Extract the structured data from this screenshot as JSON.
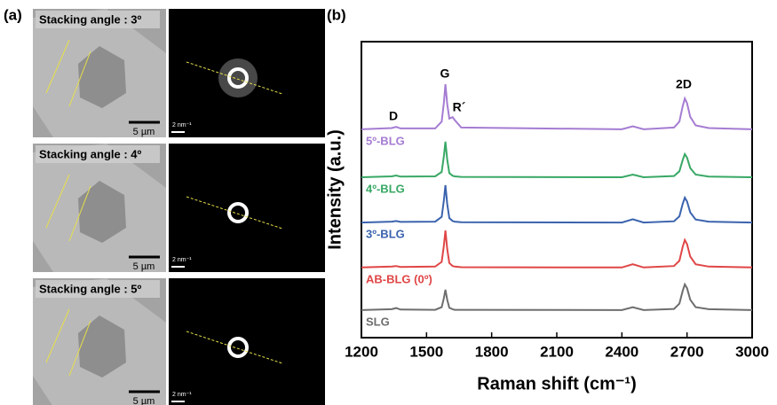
{
  "panel_a": {
    "label": "(a)",
    "rows": [
      {
        "title": "Stacking angle : 3º",
        "scale_bar": "5 µm",
        "diffraction_scale": "2 nm⁻¹"
      },
      {
        "title": "Stacking angle : 4º",
        "scale_bar": "5 µm",
        "diffraction_scale": "2 nm⁻¹"
      },
      {
        "title": "Stacking angle : 5º",
        "scale_bar": "5 µm",
        "diffraction_scale": "2 nm⁻¹"
      }
    ]
  },
  "chart_data": {
    "type": "line",
    "panel_label": "(b)",
    "x_label": "Raman shift (cm⁻¹)",
    "y_label": "Intensity (a.u.)",
    "annotations": [
      "G",
      "R´",
      "D",
      "2D"
    ],
    "x": [
      1200,
      1340,
      1360,
      1380,
      1540,
      1570,
      1580,
      1587,
      1595,
      1605,
      1620,
      1630,
      1660,
      2400,
      2450,
      2500,
      2640,
      2665,
      2680,
      2690,
      2700,
      2715,
      2740,
      2800,
      3000
    ],
    "series": [
      {
        "name": "5º-BLG",
        "color": "#a57cd2",
        "values": [
          70.4,
          70.8,
          71.2,
          70.7,
          70.7,
          73.0,
          79.5,
          85.6,
          79.0,
          74.0,
          74.5,
          73.5,
          71.0,
          70.4,
          71.4,
          70.4,
          71.0,
          73.0,
          78.2,
          80.8,
          79.2,
          74.6,
          71.7,
          70.8,
          70.4
        ]
      },
      {
        "name": "4º-BLG",
        "color": "#38a865",
        "values": [
          54.2,
          54.5,
          54.8,
          54.4,
          54.5,
          56.0,
          61.4,
          66.2,
          60.2,
          55.6,
          54.7,
          54.5,
          54.3,
          54.2,
          55.1,
          54.2,
          54.6,
          56.2,
          60.0,
          62.0,
          60.8,
          57.3,
          55.1,
          54.4,
          54.2
        ]
      },
      {
        "name": "3º-BLG",
        "color": "#3a63ae",
        "values": [
          38.9,
          39.2,
          39.4,
          39.1,
          39.2,
          40.8,
          46.5,
          51.5,
          45.2,
          40.4,
          39.4,
          39.2,
          39.0,
          38.9,
          40.0,
          38.9,
          39.3,
          41.0,
          45.2,
          47.3,
          46.0,
          42.3,
          39.9,
          39.2,
          38.9
        ]
      },
      {
        "name": "AB-BLG (0º)",
        "color": "#e04646",
        "values": [
          23.7,
          24.0,
          24.2,
          23.9,
          24.0,
          25.6,
          31.2,
          36.2,
          30.0,
          25.2,
          24.2,
          24.0,
          23.8,
          23.7,
          24.8,
          23.7,
          24.2,
          26.0,
          30.7,
          33.0,
          31.6,
          27.4,
          24.8,
          24.0,
          23.7
        ]
      },
      {
        "name": "SLG",
        "color": "#6e6e6e",
        "values": [
          9.3,
          9.6,
          10.0,
          9.5,
          9.4,
          10.3,
          13.4,
          16.2,
          12.8,
          10.1,
          9.6,
          9.4,
          9.4,
          9.3,
          10.3,
          9.3,
          9.7,
          11.5,
          15.8,
          18.0,
          16.7,
          12.8,
          10.3,
          9.6,
          9.3
        ]
      }
    ],
    "xlim": [
      1200,
      3000
    ],
    "xticks": [
      1200,
      1500,
      1800,
      2100,
      2400,
      2700,
      3000
    ],
    "ylim": [
      0,
      100
    ]
  }
}
